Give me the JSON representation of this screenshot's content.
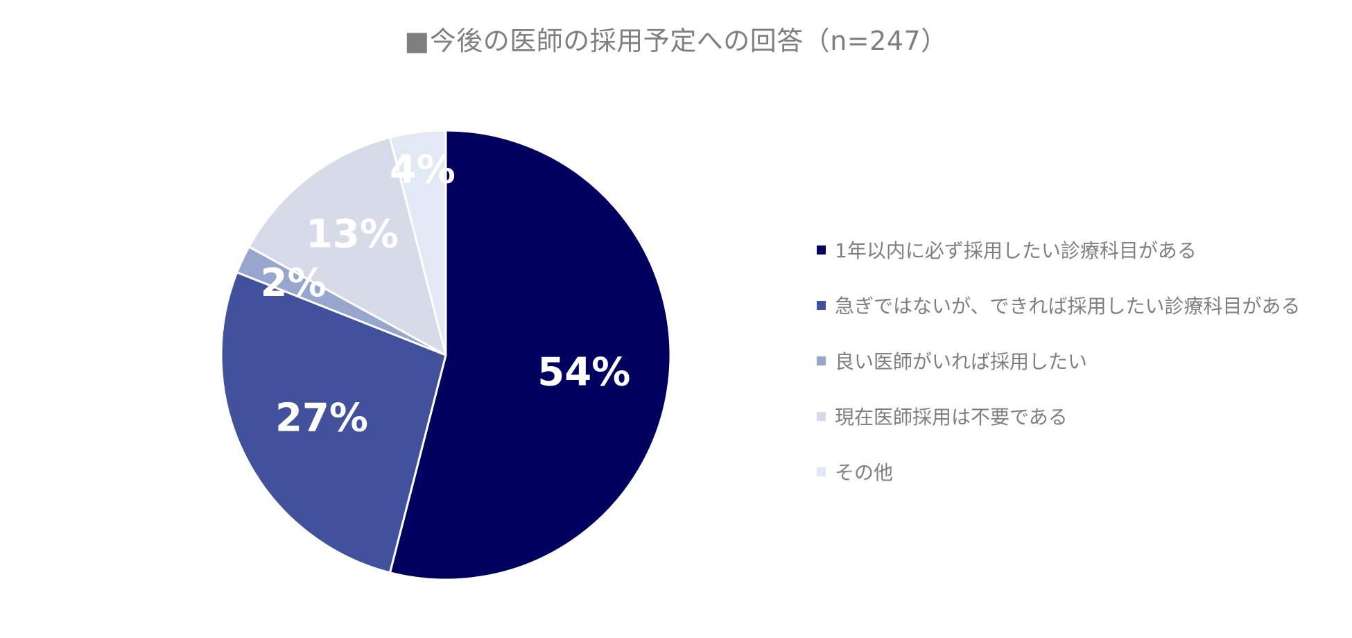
{
  "chart_data": {
    "type": "pie",
    "title": "■今後の医師の採用予定への回答（n=247）",
    "slices": [
      {
        "name": "1年以内に必ず採用したい診療科目がある",
        "value": 54,
        "label": "54%",
        "color": "#00005e"
      },
      {
        "name": "急ぎではないが、できれば採用したい診療科目がある",
        "value": 27,
        "label": "27%",
        "color": "#41519c"
      },
      {
        "name": "良い医師がいれば採用したい",
        "value": 2,
        "label": "2%",
        "color": "#97a6cc"
      },
      {
        "name": "現在医師採用は不要である",
        "value": 13,
        "label": "13%",
        "color": "#d7dbe7"
      },
      {
        "name": "その他",
        "value": 4,
        "label": "4%",
        "color": "#e3e8f5"
      }
    ],
    "legend_position": "right",
    "start_angle": "12 o'clock",
    "direction": "clockwise"
  }
}
